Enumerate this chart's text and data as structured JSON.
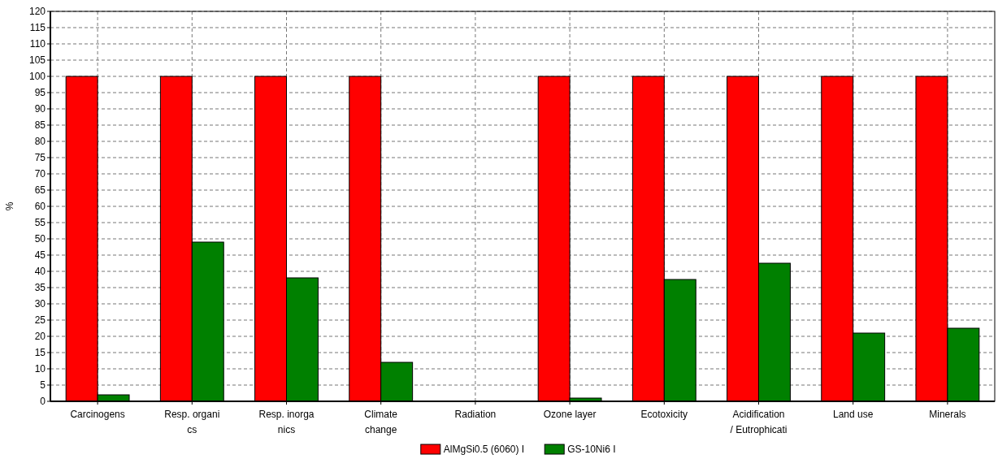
{
  "chart_data": {
    "type": "bar",
    "ylabel": "%",
    "categories": [
      "Carcinogens",
      "Resp. organi\ncs",
      "Resp. inorga\nnics",
      "Climate\nchange",
      "Radiation",
      "Ozone layer",
      "Ecotoxicity",
      "Acidification\n/ Eutrophicati",
      "Land use",
      "Minerals"
    ],
    "series": [
      {
        "name": "AlMgSi0.5 (6060) I",
        "color": "#ff0000",
        "values": [
          100,
          100,
          100,
          100,
          0,
          100,
          100,
          100,
          100,
          100
        ]
      },
      {
        "name": "GS-10Ni6 I",
        "color": "#008000",
        "values": [
          2,
          49,
          38,
          12,
          0,
          1,
          37.5,
          42.5,
          21,
          22.5
        ]
      }
    ],
    "ylim": [
      0,
      120
    ],
    "yticks": [
      0,
      5,
      10,
      15,
      20,
      25,
      30,
      35,
      40,
      45,
      50,
      55,
      60,
      65,
      70,
      75,
      80,
      85,
      90,
      95,
      100,
      105,
      110,
      115,
      120
    ],
    "grid": true,
    "legend": "bottom"
  }
}
